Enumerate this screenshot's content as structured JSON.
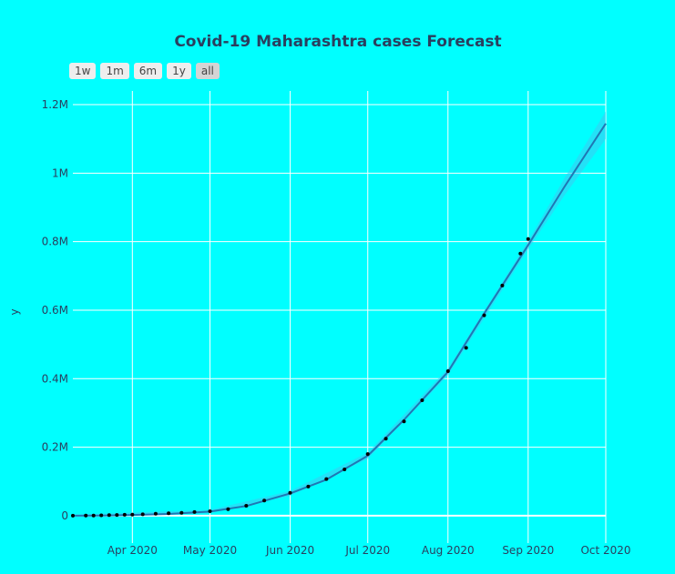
{
  "range_selector": {
    "buttons": [
      {
        "label": "1w",
        "active": false
      },
      {
        "label": "1m",
        "active": false
      },
      {
        "label": "6m",
        "active": false
      },
      {
        "label": "1y",
        "active": false
      },
      {
        "label": "all",
        "active": true
      }
    ]
  },
  "colors": {
    "background": "#00ffff",
    "grid": "#ffffff",
    "forecast_line": "#1f77b4",
    "uncertainty_band": "#3fc8f0",
    "actual_points": "#000000",
    "text": "#2a3f5f"
  },
  "chart_data": {
    "type": "line",
    "title": "Covid-19 Maharashtra cases Forecast",
    "xlabel": "",
    "ylabel": "y",
    "x_type": "date",
    "xlim": [
      "2020-03-09",
      "2020-10-01"
    ],
    "ylim": [
      -80000,
      1240000
    ],
    "grid": true,
    "x_ticks": [
      {
        "date": "2020-04-01",
        "label": "Apr 2020"
      },
      {
        "date": "2020-05-01",
        "label": "May 2020"
      },
      {
        "date": "2020-06-01",
        "label": "Jun 2020"
      },
      {
        "date": "2020-07-01",
        "label": "Jul 2020"
      },
      {
        "date": "2020-08-01",
        "label": "Aug 2020"
      },
      {
        "date": "2020-09-01",
        "label": "Sep 2020"
      },
      {
        "date": "2020-10-01",
        "label": "Oct 2020"
      }
    ],
    "y_ticks": [
      {
        "value": 0,
        "label": "0"
      },
      {
        "value": 200000,
        "label": "0.2M"
      },
      {
        "value": 400000,
        "label": "0.4M"
      },
      {
        "value": 600000,
        "label": "0.6M"
      },
      {
        "value": 800000,
        "label": "0.8M"
      },
      {
        "value": 1000000,
        "label": "1M"
      },
      {
        "value": 1200000,
        "label": "1.2M"
      }
    ],
    "series": [
      {
        "name": "",
        "kind": "forecast",
        "points": [
          [
            "2020-03-09",
            0
          ],
          [
            "2020-03-20",
            200
          ],
          [
            "2020-04-01",
            2000
          ],
          [
            "2020-04-15",
            5000
          ],
          [
            "2020-05-01",
            12000
          ],
          [
            "2020-05-15",
            28000
          ],
          [
            "2020-06-01",
            65000
          ],
          [
            "2020-06-15",
            105000
          ],
          [
            "2020-07-01",
            175000
          ],
          [
            "2020-07-15",
            280000
          ],
          [
            "2020-08-01",
            420000
          ],
          [
            "2020-08-15",
            590000
          ],
          [
            "2020-09-01",
            790000
          ],
          [
            "2020-09-15",
            960000
          ],
          [
            "2020-10-01",
            1145000
          ]
        ],
        "band": [
          [
            "2020-03-09",
            -3000,
            3000
          ],
          [
            "2020-05-01",
            7000,
            17000
          ],
          [
            "2020-06-01",
            58000,
            72000
          ],
          [
            "2020-07-01",
            166000,
            184000
          ],
          [
            "2020-08-01",
            410000,
            430000
          ],
          [
            "2020-09-01",
            778000,
            802000
          ],
          [
            "2020-09-15",
            935000,
            985000
          ],
          [
            "2020-10-01",
            1100000,
            1180000
          ]
        ]
      },
      {
        "name": "",
        "kind": "actual",
        "points": [
          [
            "2020-03-09",
            0
          ],
          [
            "2020-03-14",
            100
          ],
          [
            "2020-03-17",
            500
          ],
          [
            "2020-03-20",
            1000
          ],
          [
            "2020-03-23",
            1500
          ],
          [
            "2020-03-26",
            2000
          ],
          [
            "2020-03-29",
            2500
          ],
          [
            "2020-04-01",
            3000
          ],
          [
            "2020-04-05",
            4000
          ],
          [
            "2020-04-10",
            5500
          ],
          [
            "2020-04-15",
            7000
          ],
          [
            "2020-04-20",
            8500
          ],
          [
            "2020-04-25",
            10500
          ],
          [
            "2020-05-01",
            13000
          ],
          [
            "2020-05-08",
            19000
          ],
          [
            "2020-05-15",
            29000
          ],
          [
            "2020-05-22",
            44000
          ],
          [
            "2020-06-01",
            67000
          ],
          [
            "2020-06-08",
            85000
          ],
          [
            "2020-06-15",
            107000
          ],
          [
            "2020-06-22",
            135000
          ],
          [
            "2020-07-01",
            180000
          ],
          [
            "2020-07-08",
            225000
          ],
          [
            "2020-07-15",
            275000
          ],
          [
            "2020-07-22",
            337000
          ],
          [
            "2020-08-01",
            422000
          ],
          [
            "2020-08-08",
            490000
          ],
          [
            "2020-08-15",
            585000
          ],
          [
            "2020-08-22",
            672000
          ],
          [
            "2020-08-29",
            765000
          ],
          [
            "2020-09-01",
            808000
          ]
        ]
      }
    ]
  }
}
